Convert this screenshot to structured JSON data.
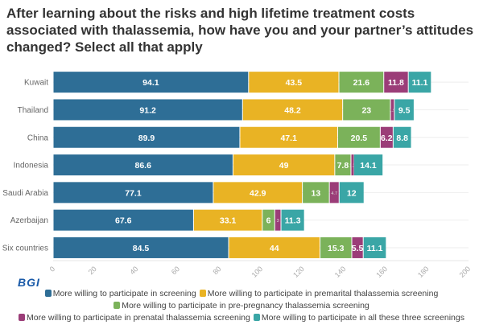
{
  "chart_data": {
    "type": "bar",
    "orientation": "horizontal",
    "stacked": true,
    "title": "After learning about the risks and high lifetime treatment costs associated with thalassemia, how have you and your partner’s attitudes changed? Select all that apply",
    "categories": [
      "Kuwait",
      "Thailand",
      "China",
      "Indonesia",
      "Saudi Arabia",
      "Azerbaijan",
      "Six countries"
    ],
    "series": [
      {
        "name": "More willing to participate in screening",
        "color": "#2e6e96",
        "values": [
          94.1,
          91.2,
          89.9,
          86.6,
          77.1,
          67.6,
          84.5
        ]
      },
      {
        "name": "More willing to participate in premarital thalassemia screening",
        "color": "#e9b324",
        "values": [
          43.5,
          48.2,
          47.1,
          49,
          42.9,
          33.1,
          44
        ]
      },
      {
        "name": "More willing to participate in pre-pregnancy thalassemia screening",
        "color": "#7bb25a",
        "values": [
          21.6,
          23,
          20.5,
          7.8,
          13,
          6,
          15.3
        ]
      },
      {
        "name": "More willing to participate in prenatal thalassemia screening",
        "color": "#9b3d78",
        "values": [
          11.8,
          1.9,
          6.2,
          1.3,
          4.7,
          3,
          5.5
        ]
      },
      {
        "name": "More willing to participate in all these three screenings",
        "color": "#3aa6a6",
        "values": [
          11.1,
          9.5,
          8.8,
          14.1,
          12,
          11.3,
          11.1
        ]
      }
    ],
    "xlim": [
      0,
      200
    ],
    "xticks": [
      "0",
      "20",
      "40",
      "60",
      "80",
      "100",
      "120",
      "140",
      "160",
      "180",
      "200"
    ],
    "grid": true,
    "legend": "bottom"
  },
  "logo": "BGI"
}
